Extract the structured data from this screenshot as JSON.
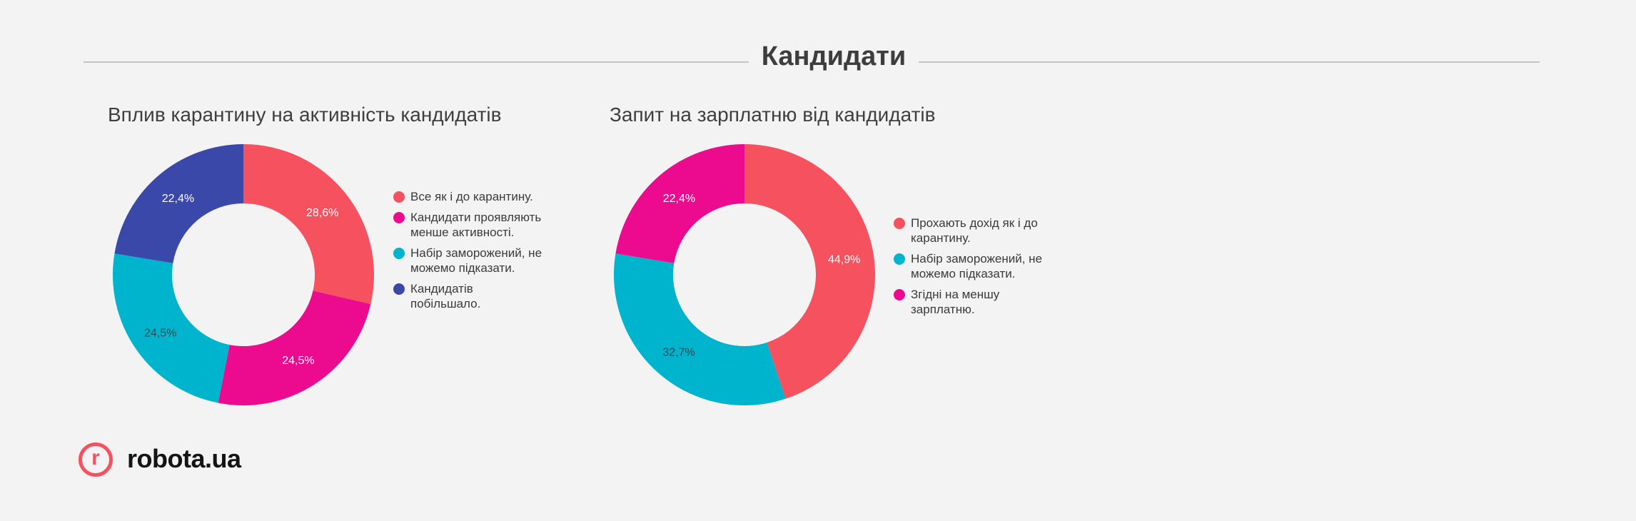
{
  "section_title": "Кандидати",
  "colors": {
    "red": "#f5515f",
    "magenta": "#ec0b8e",
    "cyan": "#00b4cd",
    "blue": "#3948a9"
  },
  "logo": {
    "mark": "r",
    "text": "robota.ua",
    "icon": "robota-logo-icon"
  },
  "chart_data": [
    {
      "type": "pie",
      "title": "Вплив карантину на активність кандидатів",
      "donut": true,
      "start_angle": 0,
      "legend_position": "right",
      "categories": [
        "Все як і до карантину.",
        "Кандидати проявляють менше активності.",
        "Набір заморожений, не можемо підказати.",
        "Кандидатів побільшало."
      ],
      "values": [
        28.6,
        24.5,
        24.5,
        22.4
      ],
      "labels": [
        "28,6%",
        "24,5%",
        "24,5%",
        "22,4%"
      ],
      "colors": [
        "#f5515f",
        "#ec0b8e",
        "#00b4cd",
        "#3948a9"
      ],
      "label_colors": [
        "#ffffff",
        "#ffffff",
        "#2f4a55",
        "#ffffff"
      ]
    },
    {
      "type": "pie",
      "title": "Запит на зарплатню від кандидатів",
      "donut": true,
      "start_angle": 0,
      "legend_position": "right",
      "categories": [
        "Прохають дохід як і до карантину.",
        "Набір заморожений, не можемо підказати.",
        "Згідні на меншу зарплатню."
      ],
      "values": [
        44.9,
        32.7,
        22.4
      ],
      "labels": [
        "44,9%",
        "32,7%",
        "22,4%"
      ],
      "colors": [
        "#f5515f",
        "#00b4cd",
        "#ec0b8e"
      ],
      "label_colors": [
        "#ffffff",
        "#2f4a55",
        "#ffffff"
      ]
    }
  ]
}
